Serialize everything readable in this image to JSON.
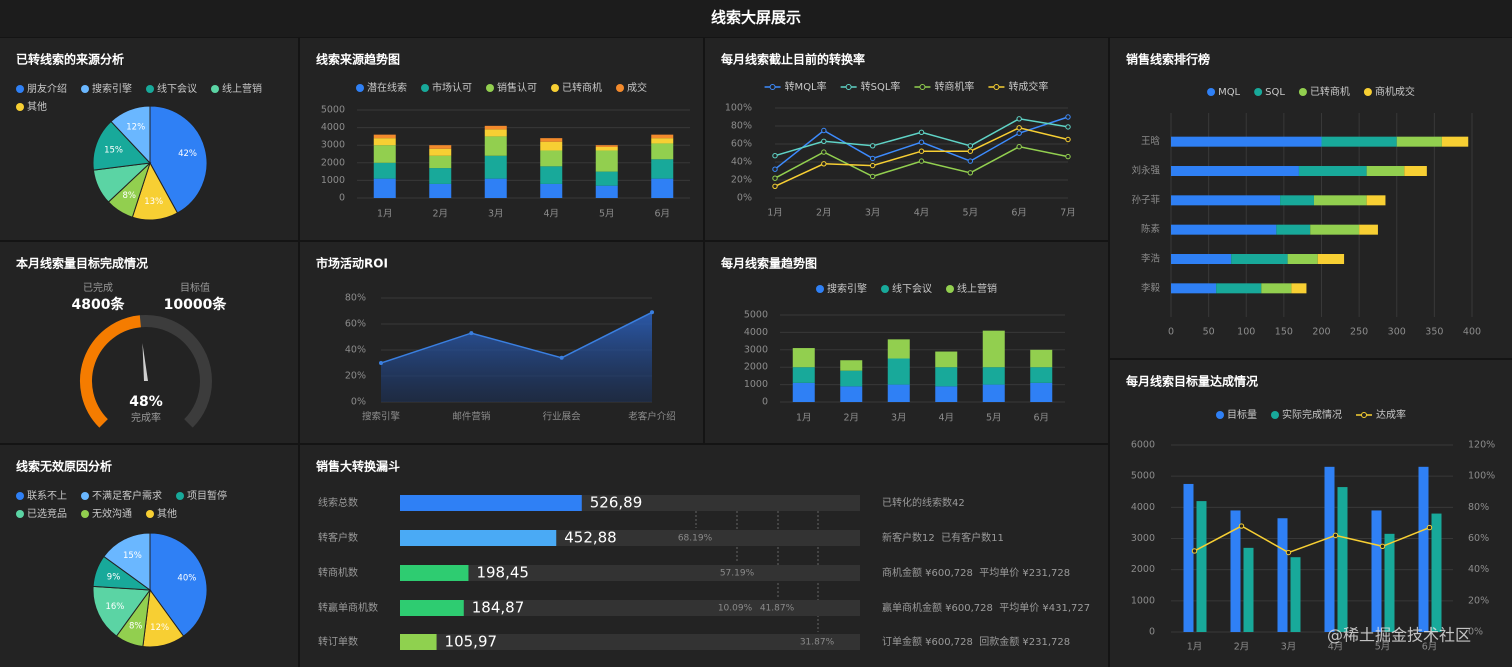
{
  "title": "线索大屏展示",
  "watermark": "@稀土掘金技术社区",
  "chart_data": [
    {
      "type": "pie",
      "title": "已转线索的来源分析",
      "categories": [
        "朋友介绍",
        "搜索引擎",
        "线下会议",
        "线上营销",
        null,
        "其他"
      ],
      "values": [
        42,
        12,
        15,
        10,
        8,
        13
      ],
      "value_labels": [
        "42%",
        "12%",
        "15%",
        null,
        "8%",
        "13%"
      ],
      "colors": [
        "#2f80f5",
        "#6ab7ff",
        "#18a99a",
        "#5bd4a4",
        "#92cf4f",
        "#f7cf33"
      ]
    },
    {
      "type": "stacked_bar",
      "title": "线索来源趋势图",
      "categories": [
        "1月",
        "2月",
        "3月",
        "4月",
        "5月",
        "6月"
      ],
      "series": [
        {
          "name": "潜在线索",
          "color": "#2f80f5",
          "values": [
            1100,
            800,
            1100,
            800,
            700,
            1100
          ]
        },
        {
          "name": "市场认可",
          "color": "#18a99a",
          "values": [
            900,
            900,
            1300,
            1000,
            800,
            1100
          ]
        },
        {
          "name": "销售认可",
          "color": "#92cf4f",
          "values": [
            1000,
            700,
            1100,
            900,
            1200,
            900
          ]
        },
        {
          "name": "已转商机",
          "color": "#f7cf33",
          "values": [
            400,
            400,
            400,
            500,
            200,
            300
          ]
        },
        {
          "name": "成交",
          "color": "#f38a2c",
          "values": [
            200,
            200,
            200,
            200,
            100,
            200
          ]
        }
      ],
      "ylim": [
        0,
        5000
      ],
      "yticks": [
        0,
        1000,
        2000,
        3000,
        4000,
        5000
      ],
      "grid": true
    },
    {
      "type": "line",
      "title": "每月线索截止目前的转换率",
      "categories": [
        "1月",
        "2月",
        "3月",
        "4月",
        "5月",
        "6月",
        "7月"
      ],
      "series": [
        {
          "name": "转MQL率",
          "color": "#3d8bfd",
          "values": [
            32,
            75,
            44,
            62,
            41,
            72,
            90
          ]
        },
        {
          "name": "转SQL率",
          "color": "#5fd3c6",
          "values": [
            47,
            63,
            58,
            73,
            58,
            88,
            79
          ]
        },
        {
          "name": "转商机率",
          "color": "#92cf4f",
          "values": [
            22,
            51,
            24,
            41,
            28,
            57,
            46
          ]
        },
        {
          "name": "转成交率",
          "color": "#f7cf33",
          "values": [
            13,
            38,
            36,
            52,
            52,
            78,
            65
          ]
        }
      ],
      "ylim": [
        0,
        100
      ],
      "yticks": [
        {
          "value": 0,
          "label": "0%"
        },
        {
          "value": 20,
          "label": "20%"
        },
        {
          "value": 40,
          "label": "40%"
        },
        {
          "value": 60,
          "label": "60%"
        },
        {
          "value": 80,
          "label": "80%"
        },
        {
          "value": 100,
          "label": "100%"
        }
      ],
      "grid": true
    },
    {
      "type": "hbar_stacked",
      "title": "销售线索排行榜",
      "categories": [
        "王晗",
        "刘永强",
        "孙子菲",
        "陈素",
        "李浩",
        "李毅"
      ],
      "series": [
        {
          "name": "MQL",
          "color": "#2f80f5",
          "values": [
            200,
            170,
            145,
            140,
            80,
            60
          ]
        },
        {
          "name": "SQL",
          "color": "#18a99a",
          "values": [
            100,
            90,
            45,
            45,
            75,
            60
          ]
        },
        {
          "name": "已转商机",
          "color": "#92cf4f",
          "values": [
            60,
            50,
            70,
            65,
            40,
            40
          ]
        },
        {
          "name": "商机成交",
          "color": "#f7cf33",
          "values": [
            35,
            30,
            25,
            25,
            35,
            20
          ]
        }
      ],
      "xlim": [
        0,
        400
      ],
      "xticks": [
        0,
        50,
        100,
        150,
        200,
        250,
        300,
        350,
        400
      ],
      "grid": true
    },
    {
      "type": "gauge",
      "title": "本月线索量目标完成情况",
      "categories": [
        "已完成",
        "目标值"
      ],
      "values": [
        4800,
        10000
      ],
      "value_labels": [
        "4800条",
        "10000条"
      ],
      "rate": 48,
      "rate_label": "48%",
      "rate_name": "完成率",
      "color": "#f57c00"
    },
    {
      "type": "area",
      "title": "市场活动ROI",
      "categories": [
        "搜索引擎",
        "邮件营销",
        "行业展会",
        "老客户介绍"
      ],
      "values": [
        30,
        53,
        34,
        69
      ],
      "color": "#3a7fe0",
      "ylim": [
        0,
        80
      ],
      "yticks": [
        {
          "value": 0,
          "label": "0%"
        },
        {
          "value": 20,
          "label": "20%"
        },
        {
          "value": 40,
          "label": "40%"
        },
        {
          "value": 60,
          "label": "60%"
        },
        {
          "value": 80,
          "label": "80%"
        }
      ],
      "grid": true
    },
    {
      "type": "stacked_bar",
      "title": "每月线索量趋势图",
      "categories": [
        "1月",
        "2月",
        "3月",
        "4月",
        "5月",
        "6月"
      ],
      "series": [
        {
          "name": "搜索引擎",
          "color": "#2f80f5",
          "values": [
            1100,
            900,
            1000,
            900,
            1000,
            1100
          ]
        },
        {
          "name": "线下会议",
          "color": "#18a99a",
          "values": [
            900,
            900,
            1500,
            1100,
            1000,
            900
          ]
        },
        {
          "name": "线上营销",
          "color": "#92cf4f",
          "values": [
            1100,
            600,
            1100,
            900,
            2100,
            1000
          ]
        }
      ],
      "ylim": [
        0,
        5000
      ],
      "yticks": [
        0,
        1000,
        2000,
        3000,
        4000,
        5000
      ],
      "grid": true
    },
    {
      "type": "pie",
      "title": "线索无效原因分析",
      "categories": [
        "联系不上",
        "不满足客户需求",
        "项目暂停",
        "已选竞品",
        "无效沟通",
        "其他"
      ],
      "values": [
        40,
        15,
        9,
        16,
        8,
        12
      ],
      "value_labels": [
        "40%",
        "15%",
        "9%",
        "16%",
        "8%",
        "12%"
      ],
      "colors": [
        "#2f80f5",
        "#6ab7ff",
        "#18a99a",
        "#5bd4a4",
        "#92cf4f",
        "#f7cf33"
      ]
    },
    {
      "type": "funnel",
      "title": "销售大转换漏斗",
      "categories": [
        "线索总数",
        "转客户数",
        "转商机数",
        "转赢单商机数",
        "转订单数"
      ],
      "values": [
        526.89,
        452.88,
        198.45,
        184.87,
        105.97
      ],
      "value_labels": [
        "526,89",
        "452,88",
        "198,45",
        "184,87",
        "105,97"
      ],
      "colors": [
        "#2f80f5",
        "#4aaaf5",
        "#2ecc71",
        "#2ecc71",
        "#8fd14f"
      ],
      "rate_labels": [
        [],
        [
          "68.19%"
        ],
        [
          "57.19%"
        ],
        [
          "10.09%",
          "41.87%"
        ],
        [
          "31.87%"
        ]
      ],
      "notes": [
        "已转化的线索数42",
        "新客户数12  已有客户数11",
        "商机金额 ¥600,728  平均单价 ¥231,728",
        "赢单商机金额 ¥600,728  平均单价 ¥431,727",
        "订单金额 ¥600,728  回款金额 ¥231,728"
      ]
    },
    {
      "type": "bar_line",
      "title": "每月线索目标量达成情况",
      "categories": [
        "1月",
        "2月",
        "3月",
        "4月",
        "5月",
        "6月"
      ],
      "series": [
        {
          "name": "目标量",
          "color": "#2f80f5",
          "values": [
            4750,
            3900,
            3650,
            5300,
            3900,
            5300
          ]
        },
        {
          "name": "实际完成情况",
          "color": "#18a99a",
          "values": [
            4200,
            2700,
            2400,
            4650,
            3150,
            3800
          ]
        },
        {
          "name": "达成率",
          "color": "#f7cf33",
          "axis": "y2",
          "values": [
            52,
            68,
            51,
            62,
            55,
            67
          ]
        }
      ],
      "ylim": [
        0,
        6000
      ],
      "yticks": [
        0,
        1000,
        2000,
        3000,
        4000,
        5000,
        6000
      ],
      "y2lim": [
        0,
        120
      ],
      "y2ticks": [
        {
          "value": 0,
          "label": "0%"
        },
        {
          "value": 20,
          "label": "20%"
        },
        {
          "value": 40,
          "label": "40%"
        },
        {
          "value": 60,
          "label": "60%"
        },
        {
          "value": 80,
          "label": "80%"
        },
        {
          "value": 100,
          "label": "100%"
        },
        {
          "value": 120,
          "label": "120%"
        }
      ],
      "grid": true
    }
  ]
}
